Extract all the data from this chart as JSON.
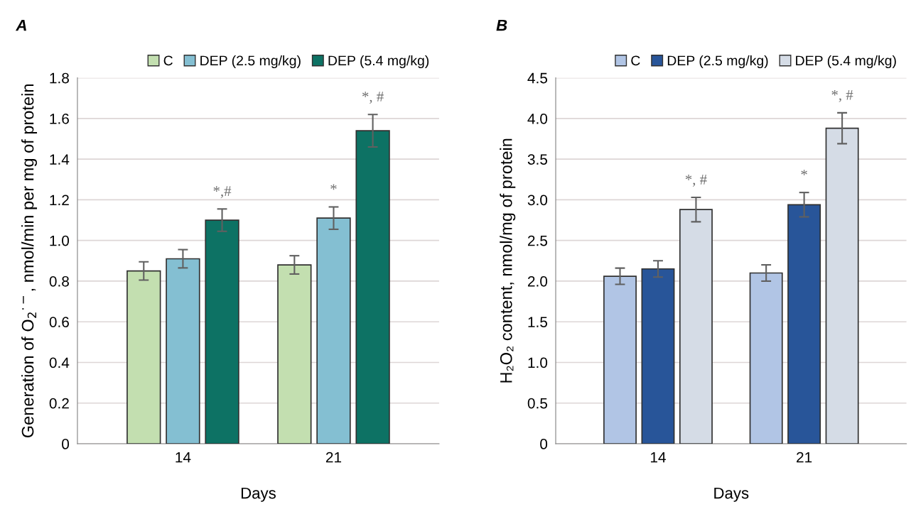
{
  "chart_data": [
    {
      "type": "bar",
      "title": "A",
      "xlabel": "Days",
      "ylabel": "Generation of O$_{2}$$^{·−}$, nmol/min per mg of protein",
      "categories": [
        "14",
        "21"
      ],
      "series": [
        {
          "name": "C",
          "color": "#c3dfb0",
          "values": [
            0.85,
            0.88
          ],
          "errors": [
            0.045,
            0.045
          ]
        },
        {
          "name": "DEP (2.5 mg/kg)",
          "color": "#84bfd2",
          "values": [
            0.91,
            1.11
          ],
          "errors": [
            0.045,
            0.055
          ],
          "value_labels": [
            null,
            "*"
          ]
        },
        {
          "name": "DEP (5.4 mg/kg)",
          "color": "#0d7264",
          "values": [
            1.1,
            1.54
          ],
          "errors": [
            0.055,
            0.08
          ],
          "value_labels": [
            "*,#",
            "*, #"
          ]
        }
      ],
      "ylim": [
        0,
        1.8
      ],
      "yticks": [
        0,
        0.2,
        0.4,
        0.6,
        0.8,
        {
          "value": 1,
          "label": "1.0"
        },
        1.2,
        1.4,
        1.6,
        1.8
      ],
      "grid": "y",
      "legend": "top right"
    },
    {
      "type": "bar",
      "title": "B",
      "xlabel": "Days",
      "ylabel": "H₂O₂ content, nmol/mg of protein",
      "categories": [
        "14",
        "21"
      ],
      "series": [
        {
          "name": "C",
          "color": "#b1c5e5",
          "values": [
            2.06,
            2.1
          ],
          "errors": [
            0.1,
            0.1
          ]
        },
        {
          "name": "DEP (2.5 mg/kg)",
          "color": "#285599",
          "values": [
            2.15,
            2.94
          ],
          "errors": [
            0.1,
            0.15
          ],
          "value_labels": [
            null,
            "*"
          ]
        },
        {
          "name": "DEP (5.4 mg/kg)",
          "color": "#d5dce6",
          "values": [
            2.88,
            3.88
          ],
          "errors": [
            0.15,
            0.19
          ],
          "value_labels": [
            "*, #",
            "*, #"
          ]
        }
      ],
      "ylim": [
        0,
        4.5
      ],
      "yticks": [
        0,
        0.5,
        {
          "value": 1,
          "label": "1.0"
        },
        1.5,
        {
          "value": 2,
          "label": "2.0"
        },
        2.5,
        {
          "value": 3,
          "label": "3.0"
        },
        3.5,
        {
          "value": 4,
          "label": "4.0"
        },
        4.5
      ],
      "grid": "y",
      "legend": "top right"
    }
  ]
}
